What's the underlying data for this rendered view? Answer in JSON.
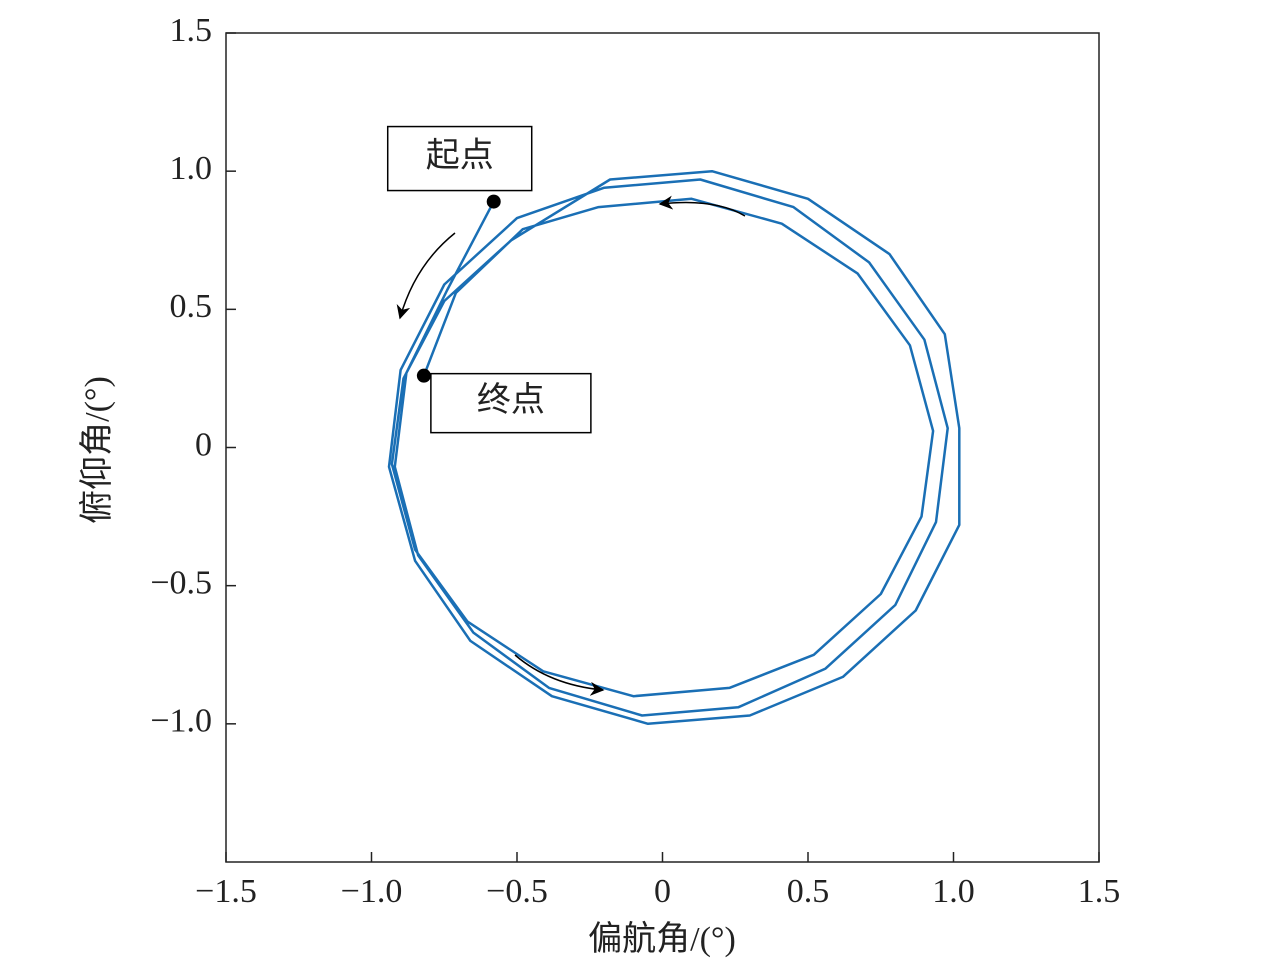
{
  "chart_data": {
    "type": "line",
    "xlabel": "偏航角/(°)",
    "ylabel": "俯仰角/(°)",
    "xlim": [
      -1.5,
      1.5
    ],
    "ylim": [
      -1.5,
      1.5
    ],
    "xticks": [
      {
        "value": -1.5,
        "label": "−1.5"
      },
      {
        "value": -1.0,
        "label": "−1.0"
      },
      {
        "value": -0.5,
        "label": "−0.5"
      },
      0,
      0.5,
      {
        "value": 1.0,
        "label": "1.0"
      },
      1.5
    ],
    "yticks": [
      {
        "value": -1.0,
        "label": "−1.0"
      },
      {
        "value": -0.5,
        "label": "−0.5"
      },
      0,
      0.5,
      {
        "value": 1.0,
        "label": "1.0"
      },
      1.5
    ],
    "grid": false,
    "series": [
      {
        "color": "#1a6fb5",
        "x": [
          -0.58,
          -0.74,
          -0.88,
          -0.92,
          -0.84,
          -0.65,
          -0.39,
          -0.07,
          0.26,
          0.56,
          0.8,
          0.94,
          0.98,
          0.9,
          0.71,
          0.45,
          0.13,
          -0.2,
          -0.5,
          -0.75,
          -0.9,
          -0.94,
          -0.85,
          -0.66,
          -0.38,
          -0.05,
          0.3,
          0.62,
          0.87,
          1.02,
          1.02,
          0.97,
          0.78,
          0.5,
          0.17,
          -0.18,
          -0.52,
          -0.75,
          -0.89,
          -0.93,
          -0.85,
          -0.67,
          -0.41,
          -0.1,
          0.23,
          0.52,
          0.75,
          0.89,
          0.93,
          0.85,
          0.67,
          0.41,
          0.1,
          -0.22,
          -0.48,
          -0.71,
          -0.82
        ],
        "values": [
          0.89,
          0.57,
          0.27,
          -0.07,
          -0.39,
          -0.67,
          -0.87,
          -0.97,
          -0.94,
          -0.8,
          -0.57,
          -0.27,
          0.07,
          0.39,
          0.67,
          0.87,
          0.97,
          0.94,
          0.83,
          0.59,
          0.28,
          -0.07,
          -0.41,
          -0.7,
          -0.9,
          -1.0,
          -0.97,
          -0.83,
          -0.59,
          -0.28,
          0.07,
          0.41,
          0.7,
          0.9,
          1.0,
          0.97,
          0.75,
          0.53,
          0.25,
          -0.06,
          -0.37,
          -0.63,
          -0.81,
          -0.9,
          -0.87,
          -0.75,
          -0.53,
          -0.25,
          0.06,
          0.37,
          0.63,
          0.81,
          0.9,
          0.87,
          0.79,
          0.56,
          0.26
        ]
      }
    ],
    "annotations": [
      {
        "text": "起点",
        "x": -0.58,
        "y": 0.89
      },
      {
        "text": "终点",
        "x": -0.82,
        "y": 0.26
      }
    ]
  }
}
